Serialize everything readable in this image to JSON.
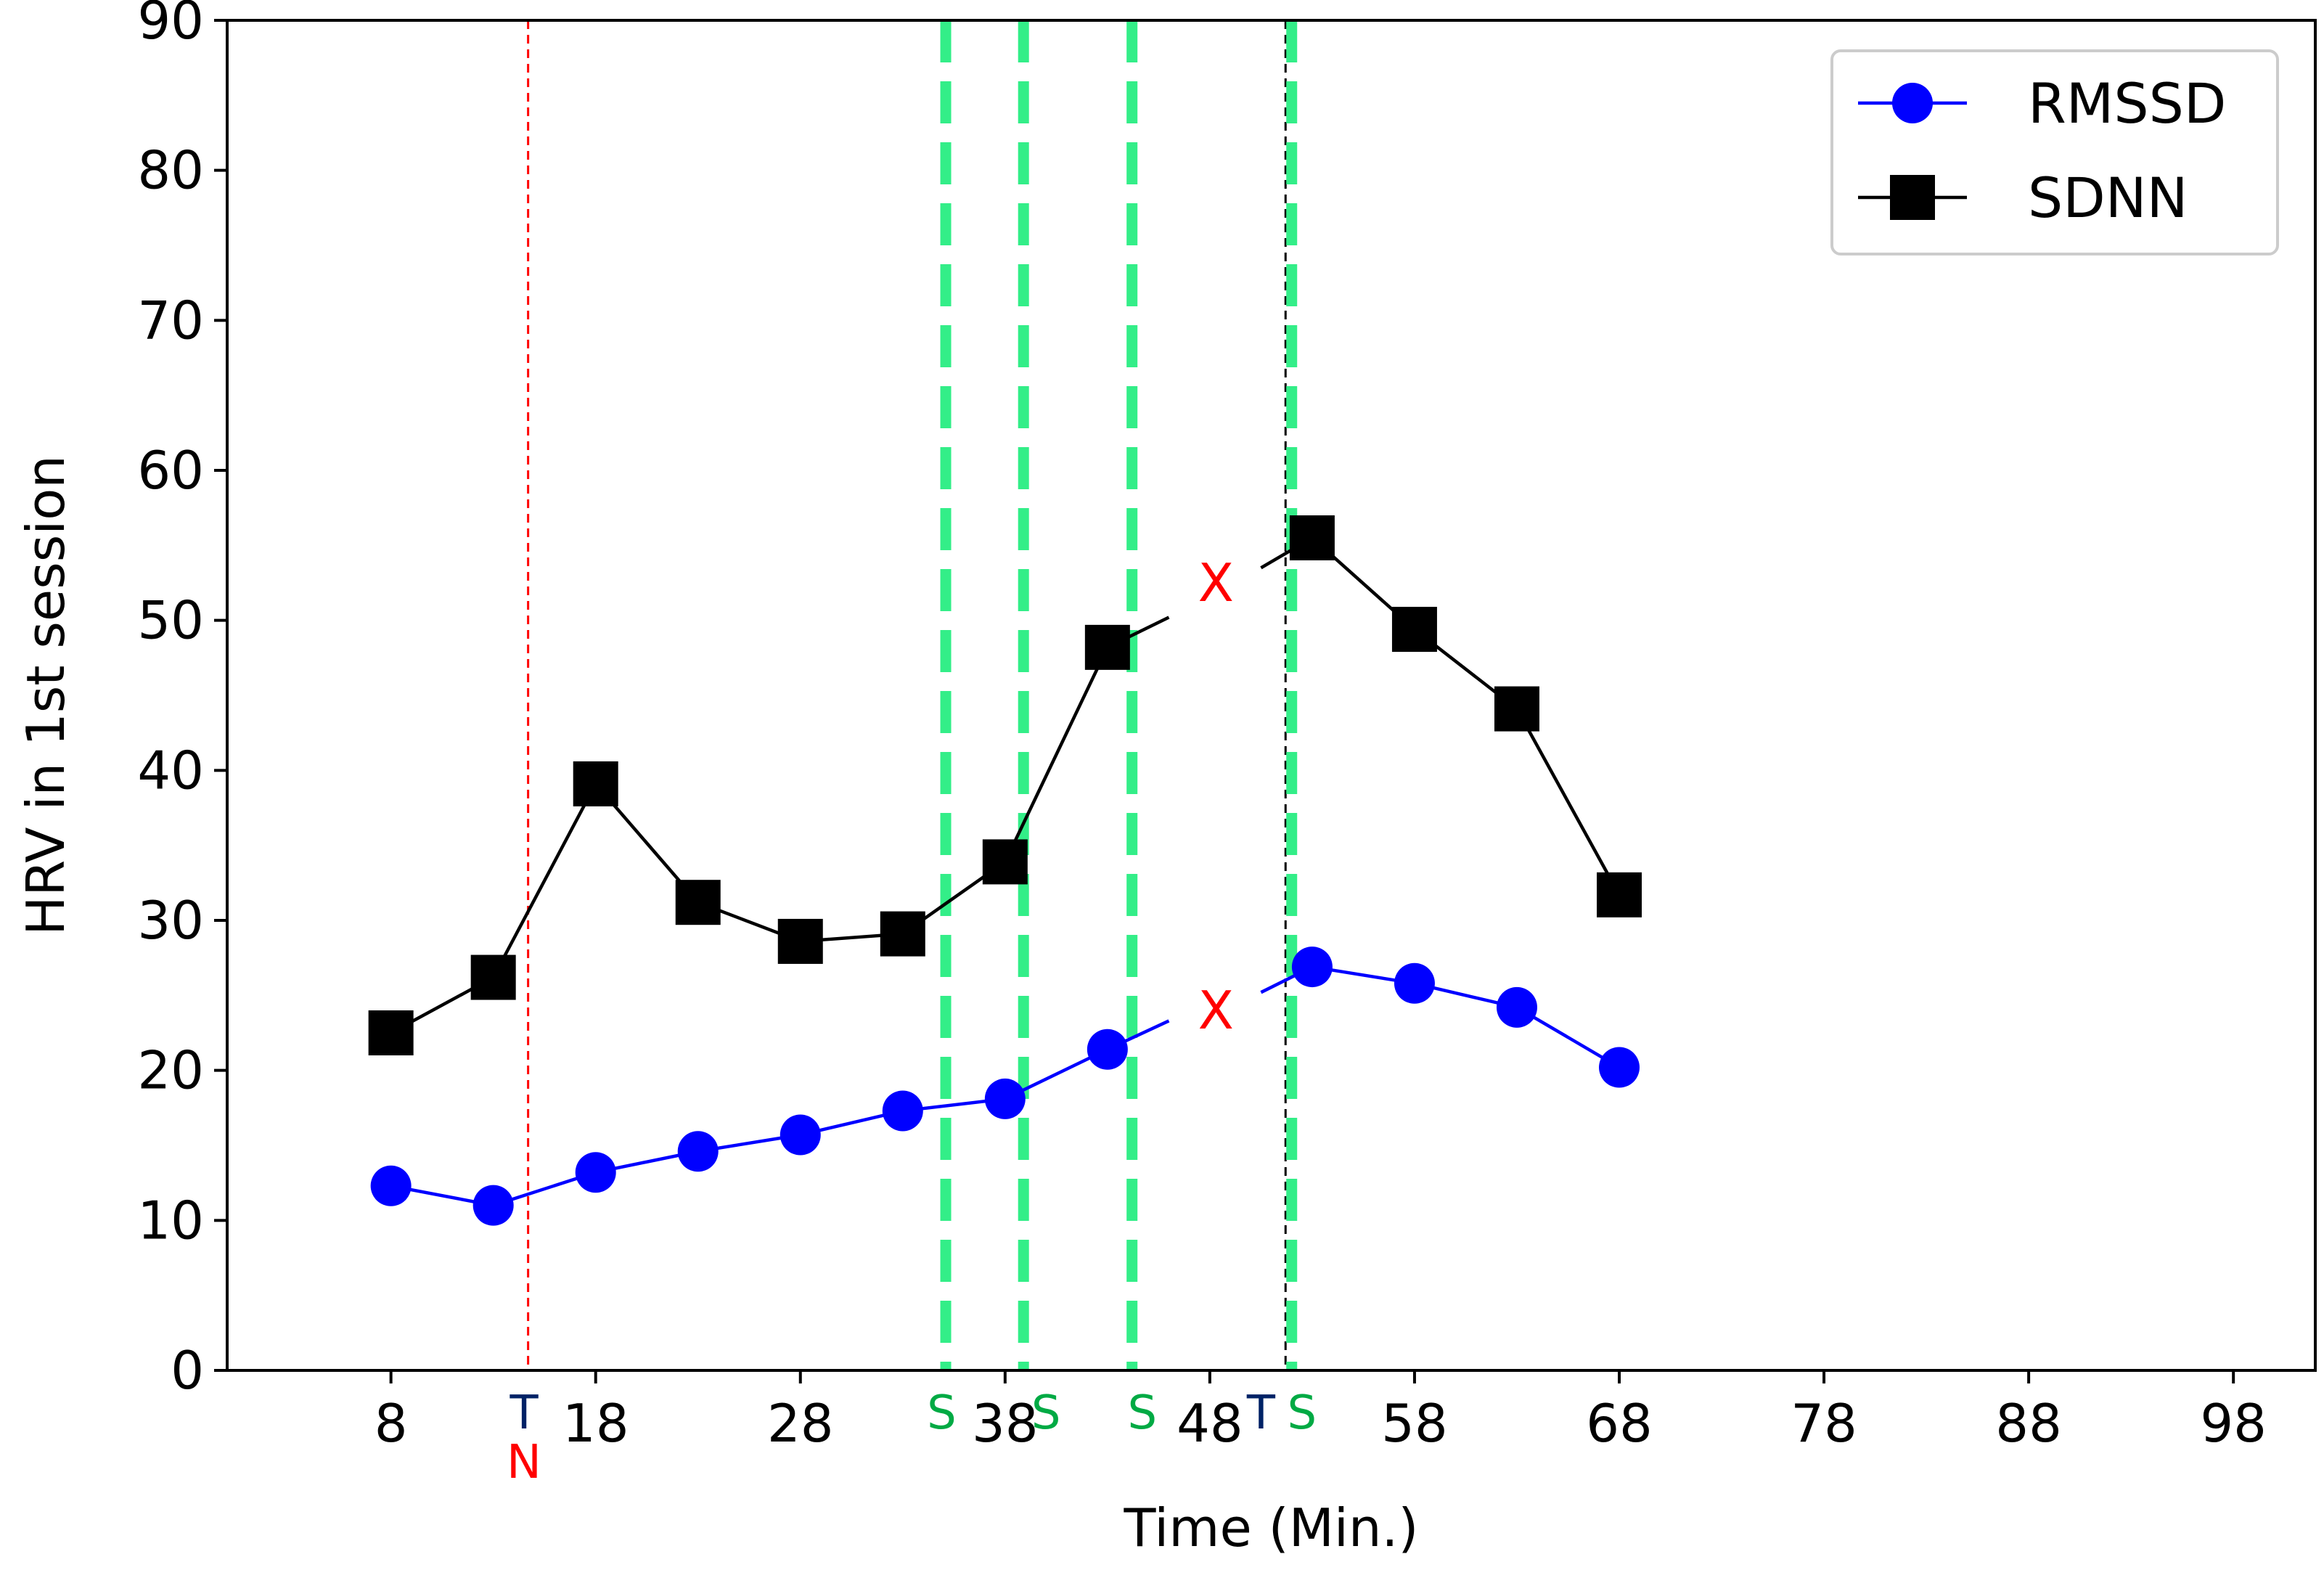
{
  "chart_data": {
    "type": "line",
    "xlabel": "Time (Min.)",
    "ylabel": "HRV in 1st session",
    "xlim": [
      0,
      102
    ],
    "ylim": [
      0,
      90
    ],
    "xticks": [
      8,
      18,
      28,
      38,
      48,
      58,
      68,
      78,
      88,
      98
    ],
    "yticks": [
      0,
      10,
      20,
      30,
      40,
      50,
      60,
      70,
      80,
      90
    ],
    "series": [
      {
        "name": "RMSSD",
        "color": "#0000ff",
        "marker": "circle",
        "segments": [
          [
            [
              8,
              12.3
            ],
            [
              13,
              11.0
            ],
            [
              18,
              13.2
            ],
            [
              23,
              14.6
            ],
            [
              28,
              15.7
            ],
            [
              33,
              17.3
            ],
            [
              38,
              18.1
            ],
            [
              43,
              21.4
            ],
            [
              46,
              23.3
            ]
          ],
          [
            [
              50.5,
              25.2
            ],
            [
              53,
              26.9
            ],
            [
              58,
              25.8
            ],
            [
              63,
              24.2
            ],
            [
              68,
              20.2
            ]
          ]
        ],
        "points": [
          [
            8,
            12.3
          ],
          [
            13,
            11.0
          ],
          [
            18,
            13.2
          ],
          [
            23,
            14.6
          ],
          [
            28,
            15.7
          ],
          [
            33,
            17.3
          ],
          [
            38,
            18.1
          ],
          [
            43,
            21.4
          ],
          [
            53,
            26.9
          ],
          [
            58,
            25.8
          ],
          [
            63,
            24.2
          ],
          [
            68,
            20.2
          ]
        ]
      },
      {
        "name": "SDNN",
        "color": "#000000",
        "marker": "square",
        "segments": [
          [
            [
              8,
              22.5
            ],
            [
              13,
              26.2
            ],
            [
              18,
              39.1
            ],
            [
              23,
              31.2
            ],
            [
              28,
              28.6
            ],
            [
              33,
              29.1
            ],
            [
              38,
              33.9
            ],
            [
              43,
              48.2
            ],
            [
              46,
              50.2
            ]
          ],
          [
            [
              50.5,
              53.5
            ],
            [
              53,
              55.5
            ],
            [
              58,
              49.4
            ],
            [
              63,
              44.1
            ],
            [
              68,
              31.7
            ]
          ]
        ],
        "points": [
          [
            8,
            22.5
          ],
          [
            13,
            26.2
          ],
          [
            18,
            39.1
          ],
          [
            23,
            31.2
          ],
          [
            28,
            28.6
          ],
          [
            33,
            29.1
          ],
          [
            38,
            33.9
          ],
          [
            43,
            48.2
          ],
          [
            53,
            55.5
          ],
          [
            58,
            49.4
          ],
          [
            63,
            44.1
          ],
          [
            68,
            31.7
          ]
        ]
      }
    ],
    "vlines": [
      {
        "x": 14.7,
        "color": "#ff0000",
        "style": "thin-dashed"
      },
      {
        "x": 51.7,
        "color": "#000000",
        "style": "thin-dashed"
      },
      {
        "x": 35.1,
        "color": "#33ee88",
        "style": "thick-dashed"
      },
      {
        "x": 38.9,
        "color": "#33ee88",
        "style": "thick-dashed"
      },
      {
        "x": 44.2,
        "color": "#33ee88",
        "style": "thick-dashed"
      },
      {
        "x": 52.0,
        "color": "#33ee88",
        "style": "thick-dashed"
      }
    ],
    "missing_markers": [
      {
        "text": "X",
        "x": 48.3,
        "y": 52.5,
        "color": "#ff0000"
      },
      {
        "text": "X",
        "x": 48.3,
        "y": 24.0,
        "color": "#ff0000"
      }
    ],
    "axis_annotations": [
      {
        "text": "T",
        "x": 14.5,
        "row": 1,
        "color": "#002266"
      },
      {
        "text": "N",
        "x": 14.5,
        "row": 2,
        "color": "#ff0000"
      },
      {
        "text": "S",
        "x": 34.9,
        "row": 1,
        "color": "#00aa44"
      },
      {
        "text": "S",
        "x": 40.0,
        "row": 1,
        "color": "#00aa44"
      },
      {
        "text": "S",
        "x": 44.7,
        "row": 1,
        "color": "#00aa44"
      },
      {
        "text": "T",
        "x": 50.5,
        "row": 1,
        "color": "#002266"
      },
      {
        "text": "S",
        "x": 52.5,
        "row": 1,
        "color": "#00aa44"
      }
    ],
    "legend": {
      "position": "top-right",
      "entries": [
        {
          "label": "RMSSD",
          "color": "#0000ff",
          "marker": "circle"
        },
        {
          "label": "SDNN",
          "color": "#000000",
          "marker": "square"
        }
      ]
    }
  }
}
